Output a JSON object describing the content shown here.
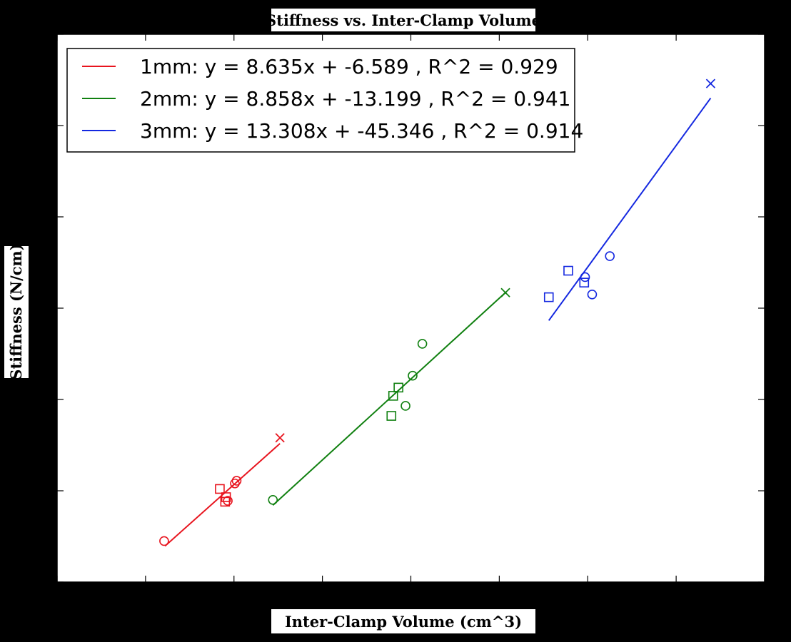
{
  "chart_data": {
    "type": "scatter",
    "title": "Stiffness vs. Inter-Clamp Volume",
    "xlabel": "Inter-Clamp Volume (cm^3)",
    "ylabel": "Stiffness (N/cm)",
    "xlim": [
      0,
      8
    ],
    "ylim": [
      0,
      60
    ],
    "xticks": [
      0,
      1,
      2,
      3,
      4,
      5,
      6,
      7,
      8
    ],
    "yticks": [
      0,
      10,
      20,
      30,
      40,
      50,
      60
    ],
    "grid": false,
    "legend_position": "upper-left",
    "series": [
      {
        "name": "1mm: y = 8.635x + -6.589 , R^2 = 0.929",
        "color": "#e8141e",
        "slope": 8.635,
        "intercept": -6.589,
        "fit_x_range": [
          1.22,
          2.52
        ],
        "points": [
          {
            "x": 1.21,
            "y": 4.5,
            "marker": "circle"
          },
          {
            "x": 1.84,
            "y": 10.2,
            "marker": "square"
          },
          {
            "x": 1.9,
            "y": 8.8,
            "marker": "square"
          },
          {
            "x": 1.91,
            "y": 9.3,
            "marker": "square"
          },
          {
            "x": 1.93,
            "y": 8.9,
            "marker": "circle"
          },
          {
            "x": 2.01,
            "y": 10.8,
            "marker": "circle"
          },
          {
            "x": 2.03,
            "y": 11.1,
            "marker": "circle"
          },
          {
            "x": 2.52,
            "y": 15.8,
            "marker": "x"
          }
        ]
      },
      {
        "name": "2mm: y = 8.858x + -13.199 , R^2 = 0.941",
        "color": "#108010",
        "slope": 8.858,
        "intercept": -13.199,
        "fit_x_range": [
          2.44,
          5.07
        ],
        "points": [
          {
            "x": 2.44,
            "y": 9.0,
            "marker": "circle"
          },
          {
            "x": 3.78,
            "y": 18.2,
            "marker": "square"
          },
          {
            "x": 3.8,
            "y": 20.4,
            "marker": "square"
          },
          {
            "x": 3.86,
            "y": 21.3,
            "marker": "square"
          },
          {
            "x": 3.94,
            "y": 19.3,
            "marker": "circle"
          },
          {
            "x": 4.02,
            "y": 22.6,
            "marker": "circle"
          },
          {
            "x": 4.13,
            "y": 26.1,
            "marker": "circle"
          },
          {
            "x": 5.07,
            "y": 31.7,
            "marker": "x"
          }
        ]
      },
      {
        "name": "3mm: y = 13.308x + -45.346 , R^2 = 0.914",
        "color": "#1428e0",
        "slope": 13.308,
        "intercept": -45.346,
        "fit_x_range": [
          5.56,
          7.39
        ],
        "points": [
          {
            "x": 5.56,
            "y": 31.2,
            "marker": "square"
          },
          {
            "x": 5.78,
            "y": 34.1,
            "marker": "square"
          },
          {
            "x": 5.96,
            "y": 32.8,
            "marker": "square"
          },
          {
            "x": 5.97,
            "y": 33.4,
            "marker": "circle"
          },
          {
            "x": 6.05,
            "y": 31.5,
            "marker": "circle"
          },
          {
            "x": 6.25,
            "y": 35.7,
            "marker": "circle"
          },
          {
            "x": 7.39,
            "y": 54.6,
            "marker": "x"
          }
        ]
      }
    ]
  }
}
